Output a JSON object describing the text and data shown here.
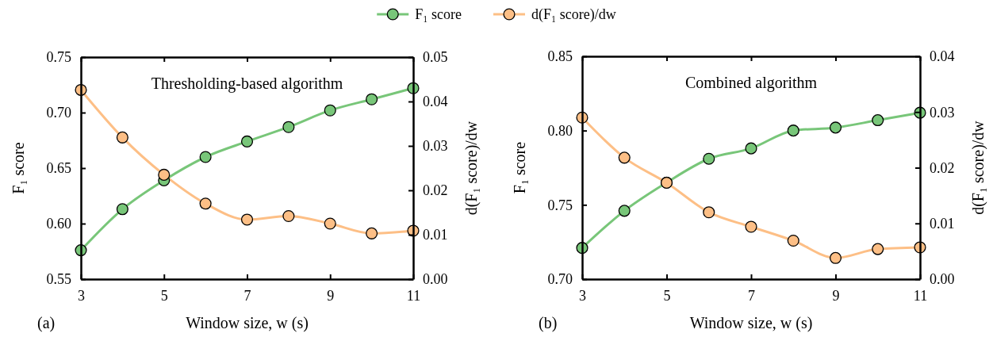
{
  "chart_data": [
    {
      "type": "line",
      "title": "Thresholding-based algorithm",
      "annotations": [
        "(a)"
      ],
      "xlabel": "Window size, w (s)",
      "ylabel": "F₁ score",
      "y2label": "d(F₁ score)/dw",
      "x": [
        3,
        4,
        5,
        6,
        7,
        8,
        9,
        10,
        11
      ],
      "xlim": [
        3,
        11
      ],
      "xticks": [
        3,
        5,
        7,
        9,
        11
      ],
      "ylim": [
        0.55,
        0.75
      ],
      "yticks": [
        {
          "value": 0.55,
          "label": "0.55"
        },
        {
          "value": 0.6,
          "label": "0.60"
        },
        {
          "value": 0.65,
          "label": "0.65"
        },
        {
          "value": 0.7,
          "label": "0.70"
        },
        {
          "value": 0.75,
          "label": "0.75"
        }
      ],
      "y2lim": [
        0,
        0.05
      ],
      "y2ticks": [
        {
          "value": 0,
          "label": "0.00"
        },
        {
          "value": 0.01,
          "label": "0.01"
        },
        {
          "value": 0.02,
          "label": "0.02"
        },
        {
          "value": 0.03,
          "label": "0.03"
        },
        {
          "value": 0.04,
          "label": "0.04"
        },
        {
          "value": 0.05,
          "label": "0.05"
        }
      ],
      "marker": "circle",
      "legend": "top",
      "grid": false,
      "series": [
        {
          "name": "F₁ score",
          "color": "#78c679",
          "values": [
            0.576,
            0.613,
            0.639,
            0.66,
            0.674,
            0.687,
            0.702,
            0.712,
            0.722
          ]
        },
        {
          "name": "d(F₁ score)/dw",
          "color": "#fdbf86",
          "axis": "y2",
          "values": [
            0.0426,
            0.0319,
            0.0235,
            0.017,
            0.0134,
            0.0142,
            0.0125,
            0.0103,
            0.0109
          ]
        }
      ]
    },
    {
      "type": "line",
      "title": "Combined algorithm",
      "annotations": [
        "(b)"
      ],
      "xlabel": "Window size, w (s)",
      "ylabel": "F₁ score",
      "y2label": "d(F₁ score)/dw",
      "x": [
        3,
        4,
        5,
        6,
        7,
        8,
        9,
        10,
        11
      ],
      "xlim": [
        3,
        11
      ],
      "xticks": [
        3,
        5,
        7,
        9,
        11
      ],
      "ylim": [
        0.7,
        0.85
      ],
      "yticks": [
        {
          "value": 0.7,
          "label": "0.70"
        },
        {
          "value": 0.75,
          "label": "0.75"
        },
        {
          "value": 0.8,
          "label": "0.80"
        },
        {
          "value": 0.85,
          "label": "0.85"
        }
      ],
      "y2lim": [
        0,
        0.04
      ],
      "y2ticks": [
        {
          "value": 0,
          "label": "0.00"
        },
        {
          "value": 0.01,
          "label": "0.01"
        },
        {
          "value": 0.02,
          "label": "0.02"
        },
        {
          "value": 0.03,
          "label": "0.03"
        },
        {
          "value": 0.04,
          "label": "0.04"
        }
      ],
      "marker": "circle",
      "grid": false,
      "series": [
        {
          "color": "#78c679",
          "values": [
            0.721,
            0.746,
            0.765,
            0.781,
            0.788,
            0.8,
            0.802,
            0.807,
            0.812
          ]
        },
        {
          "color": "#fdbf86",
          "axis": "y2",
          "values": [
            0.029,
            0.0218,
            0.0173,
            0.012,
            0.0094,
            0.0069,
            0.0038,
            0.0054,
            0.0057
          ]
        }
      ]
    }
  ]
}
